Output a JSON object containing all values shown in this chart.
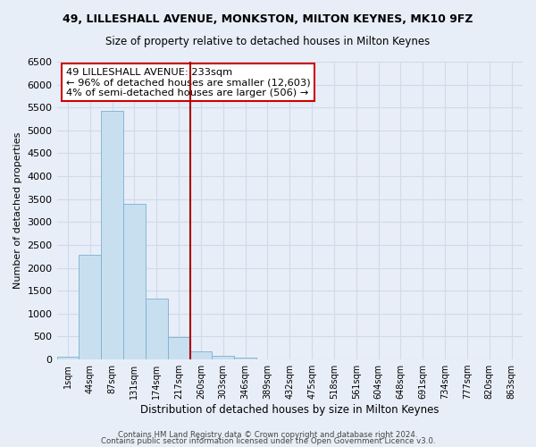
{
  "title": "49, LILLESHALL AVENUE, MONKSTON, MILTON KEYNES, MK10 9FZ",
  "subtitle": "Size of property relative to detached houses in Milton Keynes",
  "xlabel": "Distribution of detached houses by size in Milton Keynes",
  "ylabel": "Number of detached properties",
  "bar_color": "#c8dff0",
  "bar_edge_color": "#7ab0d0",
  "bin_labels": [
    "1sqm",
    "44sqm",
    "87sqm",
    "131sqm",
    "174sqm",
    "217sqm",
    "260sqm",
    "303sqm",
    "346sqm",
    "389sqm",
    "432sqm",
    "475sqm",
    "518sqm",
    "561sqm",
    "604sqm",
    "648sqm",
    "691sqm",
    "734sqm",
    "777sqm",
    "820sqm",
    "863sqm"
  ],
  "bar_heights": [
    55,
    2280,
    5430,
    3390,
    1330,
    490,
    185,
    75,
    35,
    0,
    0,
    0,
    0,
    0,
    0,
    0,
    0,
    0,
    0,
    0,
    0
  ],
  "ylim": [
    0,
    6500
  ],
  "yticks": [
    0,
    500,
    1000,
    1500,
    2000,
    2500,
    3000,
    3500,
    4000,
    4500,
    5000,
    5500,
    6000,
    6500
  ],
  "vline_x": 5.5,
  "vline_color": "#aa0000",
  "annotation_title": "49 LILLESHALL AVENUE: 233sqm",
  "annotation_line1": "← 96% of detached houses are smaller (12,603)",
  "annotation_line2": "4% of semi-detached houses are larger (506) →",
  "annotation_box_color": "#cc0000",
  "footer1": "Contains HM Land Registry data © Crown copyright and database right 2024.",
  "footer2": "Contains public sector information licensed under the Open Government Licence v3.0.",
  "bg_color": "#e8eef8",
  "grid_color": "#d0daea"
}
